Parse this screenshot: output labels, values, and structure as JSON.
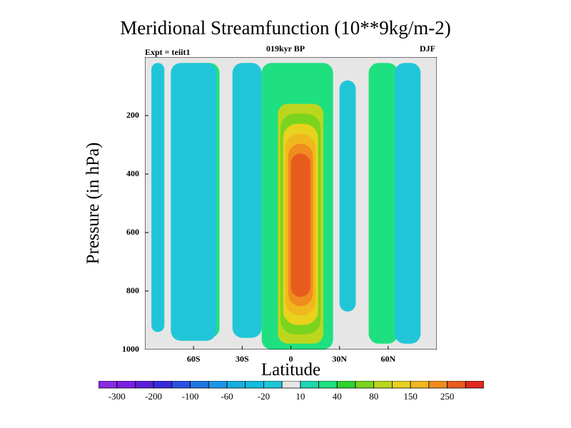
{
  "title": "Meridional Streamfunction (10**9kg/m-2)",
  "subtitle_left": "Expt = teiit1",
  "subtitle_center": "019kyr BP",
  "subtitle_right": "DJF",
  "chart_data": {
    "type": "heatmap",
    "title": "Meridional Streamfunction (10**9kg/m-2)",
    "xlabel": "Latitude",
    "ylabel": "Pressure (in hPa)",
    "xlim": [
      -90,
      90
    ],
    "ylim": [
      1000,
      0
    ],
    "xticks": [
      {
        "value": -60,
        "label": "60S"
      },
      {
        "value": -30,
        "label": "30S"
      },
      {
        "value": 0,
        "label": "0"
      },
      {
        "value": 30,
        "label": "30N"
      },
      {
        "value": 60,
        "label": "60N"
      }
    ],
    "yticks": [
      200,
      400,
      600,
      800,
      1000
    ],
    "colorbar": {
      "boundaries": [
        -400,
        -300,
        -250,
        -200,
        -150,
        -100,
        -80,
        -60,
        -40,
        -20,
        -10,
        10,
        20,
        40,
        60,
        80,
        100,
        150,
        200,
        250,
        300,
        400
      ],
      "labels": [
        "-300",
        "-200",
        "-100",
        "-60",
        "-20",
        "10",
        "40",
        "80",
        "150",
        "250"
      ],
      "colors": [
        "#8a2be2",
        "#7b1fe0",
        "#5a1fd8",
        "#3a2bd8",
        "#2a52e0",
        "#1e78e0",
        "#1e95e8",
        "#18aee0",
        "#12bde0",
        "#20c6d8",
        "#e6e6e6",
        "#1ed6b0",
        "#1ee080",
        "#2ed42e",
        "#7ad41e",
        "#bcd61e",
        "#e8d21e",
        "#f0b81e",
        "#f08c1e",
        "#e85c1e",
        "#e0281e"
      ]
    },
    "features": [
      {
        "lat_range": [
          -86,
          -78
        ],
        "p_range": [
          20,
          940
        ],
        "value": -20
      },
      {
        "lat_range": [
          -62,
          -44
        ],
        "p_range": [
          20,
          960
        ],
        "value": 25
      },
      {
        "lat_range": [
          -74,
          -46
        ],
        "p_range": [
          20,
          970
        ],
        "value": -20
      },
      {
        "lat_range": [
          -36,
          -18
        ],
        "p_range": [
          20,
          960
        ],
        "value": -20
      },
      {
        "lat_range": [
          -18,
          26
        ],
        "p_range": [
          20,
          1000
        ],
        "value": 20
      },
      {
        "lat_range": [
          -8,
          20
        ],
        "p_range": [
          160,
          980
        ],
        "value": 80
      },
      {
        "lat_range": [
          0,
          12
        ],
        "p_range": [
          330,
          820
        ],
        "value": 250
      },
      {
        "lat_range": [
          30,
          40
        ],
        "p_range": [
          80,
          870
        ],
        "value": -20
      },
      {
        "lat_range": [
          48,
          66
        ],
        "p_range": [
          20,
          980
        ],
        "value": 20
      },
      {
        "lat_range": [
          64,
          80
        ],
        "p_range": [
          20,
          980
        ],
        "value": -20
      }
    ]
  }
}
